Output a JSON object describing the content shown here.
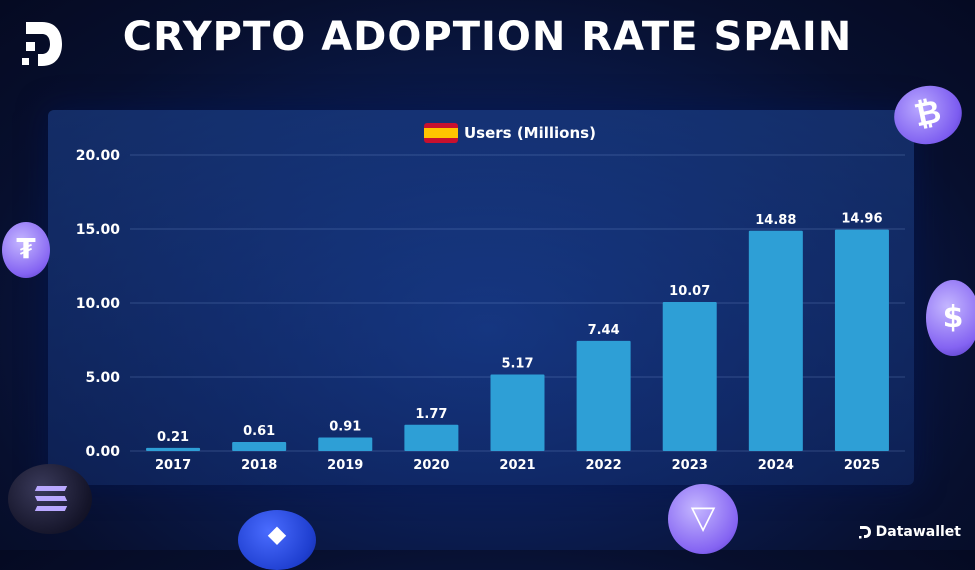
{
  "header": {
    "title": "CRYPTO ADOPTION RATE SPAIN"
  },
  "brand": {
    "name": "Datawallet"
  },
  "chart_data": {
    "type": "bar",
    "title": "CRYPTO ADOPTION RATE SPAIN",
    "legend": {
      "label": "Users (Millions)",
      "placement": "top-center"
    },
    "categories": [
      "2017",
      "2018",
      "2019",
      "2020",
      "2021",
      "2022",
      "2023",
      "2024",
      "2025"
    ],
    "values": [
      0.21,
      0.61,
      0.91,
      1.77,
      5.17,
      7.44,
      10.07,
      14.88,
      14.96
    ],
    "value_labels": [
      "0.21",
      "0.61",
      "0.91",
      "1.77",
      "5.17",
      "7.44",
      "10.07",
      "14.88",
      "14.96"
    ],
    "yticks": [
      0,
      5,
      10,
      15,
      20
    ],
    "ytick_labels": [
      "0.00",
      "5.00",
      "10.00",
      "15.00",
      "20.00"
    ],
    "ylim": [
      0,
      20
    ],
    "grid": true,
    "bar_color": "#2e9fd6",
    "label_color": "#ffffff"
  }
}
